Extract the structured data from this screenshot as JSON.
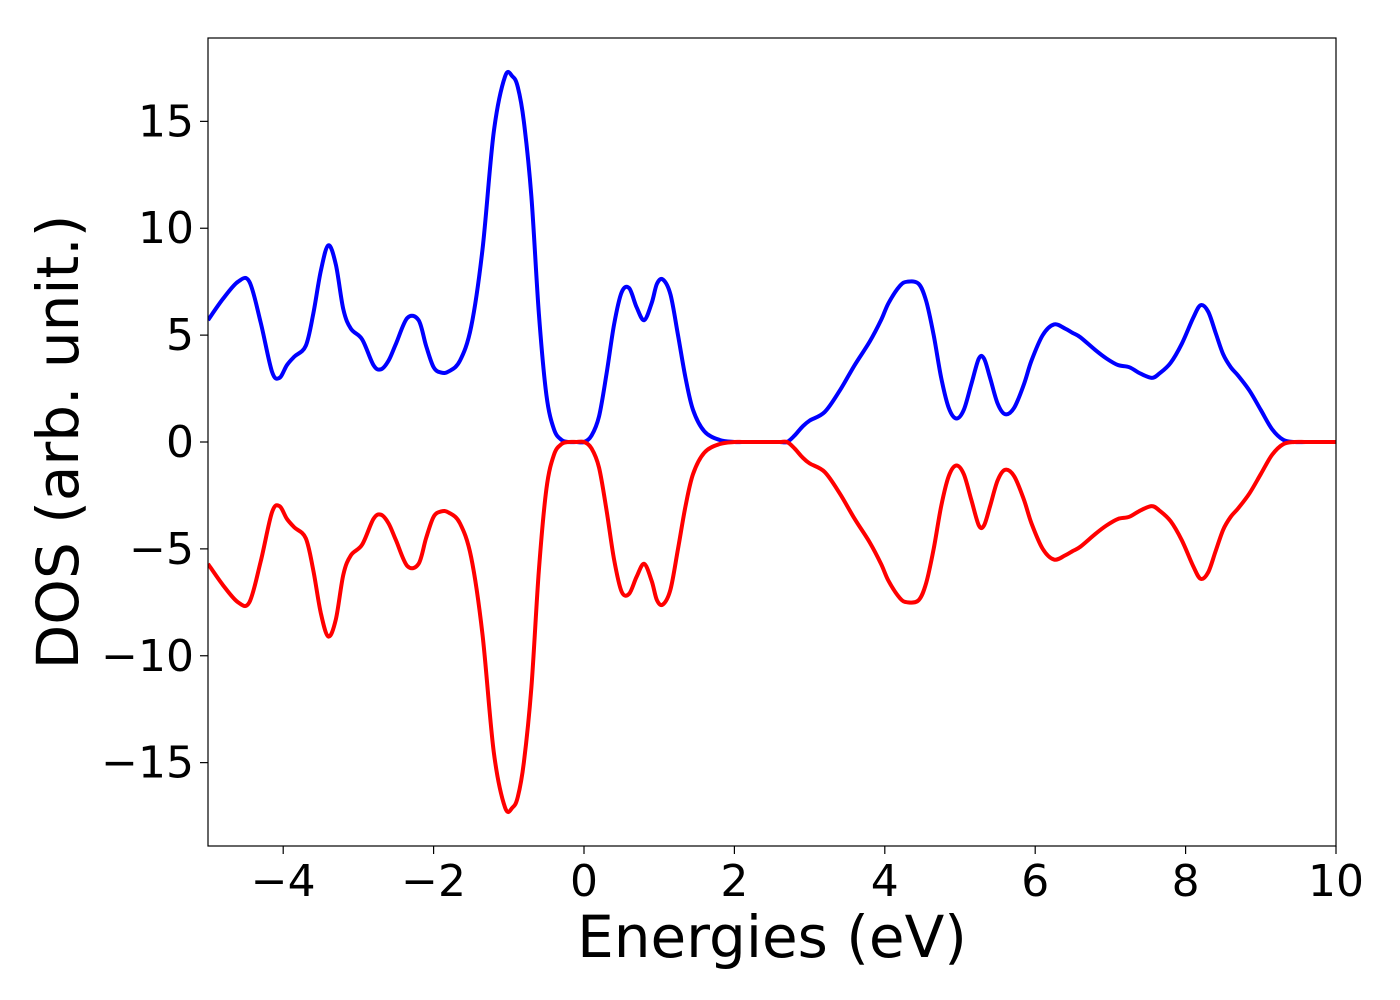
{
  "chart_data": {
    "type": "line",
    "title": "",
    "xlabel": "Energies (eV)",
    "ylabel": "DOS (arb. unit.)",
    "xlim": [
      -5,
      10
    ],
    "ylim": [
      -18.9,
      18.9
    ],
    "grid": false,
    "legend": "none",
    "x_ticks": [
      {
        "value": -4,
        "label": "−4"
      },
      {
        "value": -2,
        "label": "−2"
      },
      {
        "value": 0,
        "label": "0"
      },
      {
        "value": 2,
        "label": "2"
      },
      {
        "value": 4,
        "label": "4"
      },
      {
        "value": 6,
        "label": "6"
      },
      {
        "value": 8,
        "label": "8"
      },
      {
        "value": 10,
        "label": "10"
      }
    ],
    "y_ticks": [
      {
        "value": 15,
        "label": "15"
      },
      {
        "value": 10,
        "label": "10"
      },
      {
        "value": 5,
        "label": "5"
      },
      {
        "value": 0,
        "label": "0"
      },
      {
        "value": -5,
        "label": "−5"
      },
      {
        "value": -10,
        "label": "−10"
      },
      {
        "value": -15,
        "label": "−15"
      }
    ],
    "series": [
      {
        "color": "#0000ff",
        "x": [
          -5.0,
          -4.8,
          -4.6,
          -4.45,
          -4.3,
          -4.15,
          -4.05,
          -3.95,
          -3.85,
          -3.7,
          -3.6,
          -3.5,
          -3.4,
          -3.3,
          -3.2,
          -3.1,
          -2.95,
          -2.8,
          -2.7,
          -2.6,
          -2.5,
          -2.35,
          -2.2,
          -2.1,
          -2.0,
          -1.9,
          -1.8,
          -1.65,
          -1.5,
          -1.35,
          -1.2,
          -1.05,
          -0.95,
          -0.88,
          -0.8,
          -0.7,
          -0.6,
          -0.5,
          -0.4,
          -0.3,
          -0.2,
          -0.1,
          0.0,
          0.1,
          0.2,
          0.3,
          0.4,
          0.5,
          0.6,
          0.7,
          0.8,
          0.9,
          0.97,
          1.05,
          1.15,
          1.25,
          1.35,
          1.45,
          1.6,
          1.8,
          2.0,
          2.1,
          2.2,
          2.4,
          2.6,
          2.7,
          2.8,
          2.9,
          3.0,
          3.2,
          3.4,
          3.6,
          3.8,
          3.95,
          4.05,
          4.2,
          4.3,
          4.45,
          4.55,
          4.65,
          4.75,
          4.85,
          4.95,
          5.05,
          5.15,
          5.25,
          5.32,
          5.4,
          5.5,
          5.6,
          5.72,
          5.85,
          5.95,
          6.1,
          6.25,
          6.4,
          6.5,
          6.6,
          6.8,
          6.95,
          7.1,
          7.25,
          7.4,
          7.55,
          7.65,
          7.8,
          7.95,
          8.1,
          8.2,
          8.3,
          8.4,
          8.5,
          8.6,
          8.7,
          8.85,
          9.0,
          9.15,
          9.3,
          9.45,
          9.6,
          9.8,
          10.0
        ],
        "y": [
          5.7,
          6.7,
          7.5,
          7.5,
          5.6,
          3.3,
          3.0,
          3.6,
          4.0,
          4.5,
          6.0,
          8.0,
          9.2,
          8.3,
          6.2,
          5.3,
          4.8,
          3.6,
          3.4,
          3.8,
          4.6,
          5.8,
          5.7,
          4.5,
          3.5,
          3.25,
          3.3,
          3.8,
          5.4,
          9.0,
          14.5,
          17.1,
          17.1,
          16.6,
          15.0,
          11.5,
          6.0,
          2.2,
          0.6,
          0.1,
          0.0,
          0.0,
          0.0,
          0.3,
          1.2,
          3.2,
          5.5,
          7.0,
          7.2,
          6.3,
          5.7,
          6.5,
          7.4,
          7.6,
          6.9,
          5.0,
          3.0,
          1.5,
          0.5,
          0.1,
          0.0,
          0.0,
          0.0,
          0.0,
          0.0,
          0.0,
          0.3,
          0.7,
          1.0,
          1.4,
          2.4,
          3.6,
          4.7,
          5.7,
          6.5,
          7.3,
          7.5,
          7.4,
          6.6,
          5.0,
          3.0,
          1.6,
          1.1,
          1.5,
          2.7,
          3.9,
          3.9,
          3.0,
          1.8,
          1.3,
          1.6,
          2.7,
          3.8,
          5.0,
          5.5,
          5.3,
          5.1,
          4.9,
          4.3,
          3.9,
          3.6,
          3.5,
          3.2,
          3.0,
          3.2,
          3.7,
          4.6,
          5.8,
          6.4,
          6.1,
          5.1,
          4.1,
          3.5,
          3.1,
          2.4,
          1.5,
          0.6,
          0.1,
          0.0,
          0.0,
          0.0,
          0.0
        ]
      },
      {
        "color": "#ff0000",
        "x": [
          -5.0,
          -4.8,
          -4.6,
          -4.45,
          -4.3,
          -4.15,
          -4.05,
          -3.95,
          -3.85,
          -3.7,
          -3.6,
          -3.5,
          -3.4,
          -3.3,
          -3.2,
          -3.1,
          -2.95,
          -2.8,
          -2.7,
          -2.6,
          -2.5,
          -2.35,
          -2.2,
          -2.1,
          -2.0,
          -1.9,
          -1.8,
          -1.65,
          -1.5,
          -1.35,
          -1.2,
          -1.05,
          -0.95,
          -0.88,
          -0.8,
          -0.7,
          -0.6,
          -0.5,
          -0.4,
          -0.3,
          -0.2,
          -0.1,
          0.0,
          0.1,
          0.2,
          0.3,
          0.4,
          0.5,
          0.6,
          0.7,
          0.8,
          0.9,
          0.97,
          1.05,
          1.15,
          1.25,
          1.35,
          1.45,
          1.6,
          1.8,
          2.0,
          2.1,
          2.2,
          2.4,
          2.6,
          2.7,
          2.8,
          2.9,
          3.0,
          3.2,
          3.4,
          3.6,
          3.8,
          3.95,
          4.05,
          4.2,
          4.3,
          4.45,
          4.55,
          4.65,
          4.75,
          4.85,
          4.95,
          5.05,
          5.15,
          5.25,
          5.32,
          5.4,
          5.5,
          5.6,
          5.72,
          5.85,
          5.95,
          6.1,
          6.25,
          6.4,
          6.5,
          6.6,
          6.8,
          6.95,
          7.1,
          7.25,
          7.4,
          7.55,
          7.65,
          7.8,
          7.95,
          8.1,
          8.2,
          8.3,
          8.4,
          8.5,
          8.6,
          8.7,
          8.85,
          9.0,
          9.15,
          9.3,
          9.45,
          9.6,
          9.8,
          10.0
        ],
        "y": [
          -5.7,
          -6.7,
          -7.5,
          -7.5,
          -5.6,
          -3.3,
          -3.0,
          -3.6,
          -4.0,
          -4.5,
          -6.0,
          -8.0,
          -9.1,
          -8.3,
          -6.2,
          -5.3,
          -4.8,
          -3.6,
          -3.4,
          -3.8,
          -4.6,
          -5.8,
          -5.7,
          -4.5,
          -3.5,
          -3.25,
          -3.3,
          -3.8,
          -5.4,
          -9.0,
          -14.5,
          -17.1,
          -17.1,
          -16.6,
          -15.0,
          -11.5,
          -6.0,
          -2.2,
          -0.6,
          -0.1,
          0.0,
          0.0,
          0.0,
          -0.3,
          -1.2,
          -3.2,
          -5.5,
          -7.0,
          -7.1,
          -6.3,
          -5.7,
          -6.5,
          -7.4,
          -7.6,
          -6.9,
          -5.0,
          -3.0,
          -1.5,
          -0.5,
          -0.1,
          0.0,
          0.0,
          0.0,
          0.0,
          0.0,
          0.0,
          -0.3,
          -0.7,
          -1.0,
          -1.4,
          -2.4,
          -3.6,
          -4.7,
          -5.7,
          -6.5,
          -7.3,
          -7.5,
          -7.4,
          -6.6,
          -5.0,
          -3.0,
          -1.6,
          -1.1,
          -1.5,
          -2.7,
          -3.9,
          -3.9,
          -3.0,
          -1.8,
          -1.3,
          -1.6,
          -2.7,
          -3.8,
          -5.0,
          -5.5,
          -5.3,
          -5.1,
          -4.9,
          -4.3,
          -3.9,
          -3.6,
          -3.5,
          -3.2,
          -3.0,
          -3.2,
          -3.7,
          -4.6,
          -5.8,
          -6.4,
          -6.1,
          -5.1,
          -4.1,
          -3.5,
          -3.1,
          -2.4,
          -1.5,
          -0.6,
          -0.1,
          0.0,
          0.0,
          0.0,
          0.0
        ]
      }
    ]
  }
}
